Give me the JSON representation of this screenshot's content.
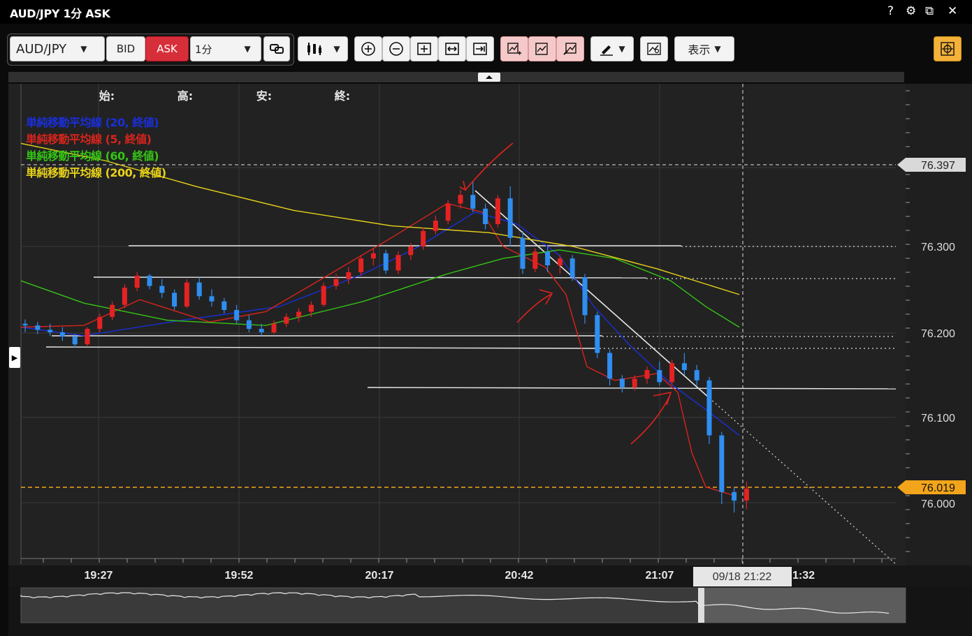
{
  "window": {
    "title": "AUD/JPY 1分 ASK",
    "controls": [
      "?",
      "⚙",
      "⧉",
      "✕"
    ]
  },
  "toolbar": {
    "pair": "AUD/JPY",
    "bid_label": "BID",
    "ask_label": "ASK",
    "timeframe": "1分",
    "view_label": "表示"
  },
  "chart": {
    "ohlc_labels": [
      "始:",
      "高:",
      "安:",
      "終:"
    ],
    "legend": [
      {
        "text": "単純移動平均線 (20, 終値)",
        "color": "#1a2fd8"
      },
      {
        "text": "単純移動平均線 (5, 終値)",
        "color": "#d8241c"
      },
      {
        "text": "単純移動平均線 (60, 終値)",
        "color": "#35c415"
      },
      {
        "text": "単純移動平均線 (200, 終値)",
        "color": "#e8d21a"
      }
    ],
    "price_labels": [
      "76.397",
      "76.300",
      "76.200",
      "76.100",
      "76.019",
      "76.000"
    ],
    "current_price": "76.019",
    "time_labels": [
      "19:27",
      "19:52",
      "20:17",
      "20:42",
      "21:07",
      "1:32"
    ],
    "cursor_time": "09/18 21:22",
    "colors": {
      "up": "#e52222",
      "down": "#2f8ef0",
      "grid": "#3a3a3a",
      "background": "#222222",
      "current_price": "#f2a51a"
    }
  }
}
